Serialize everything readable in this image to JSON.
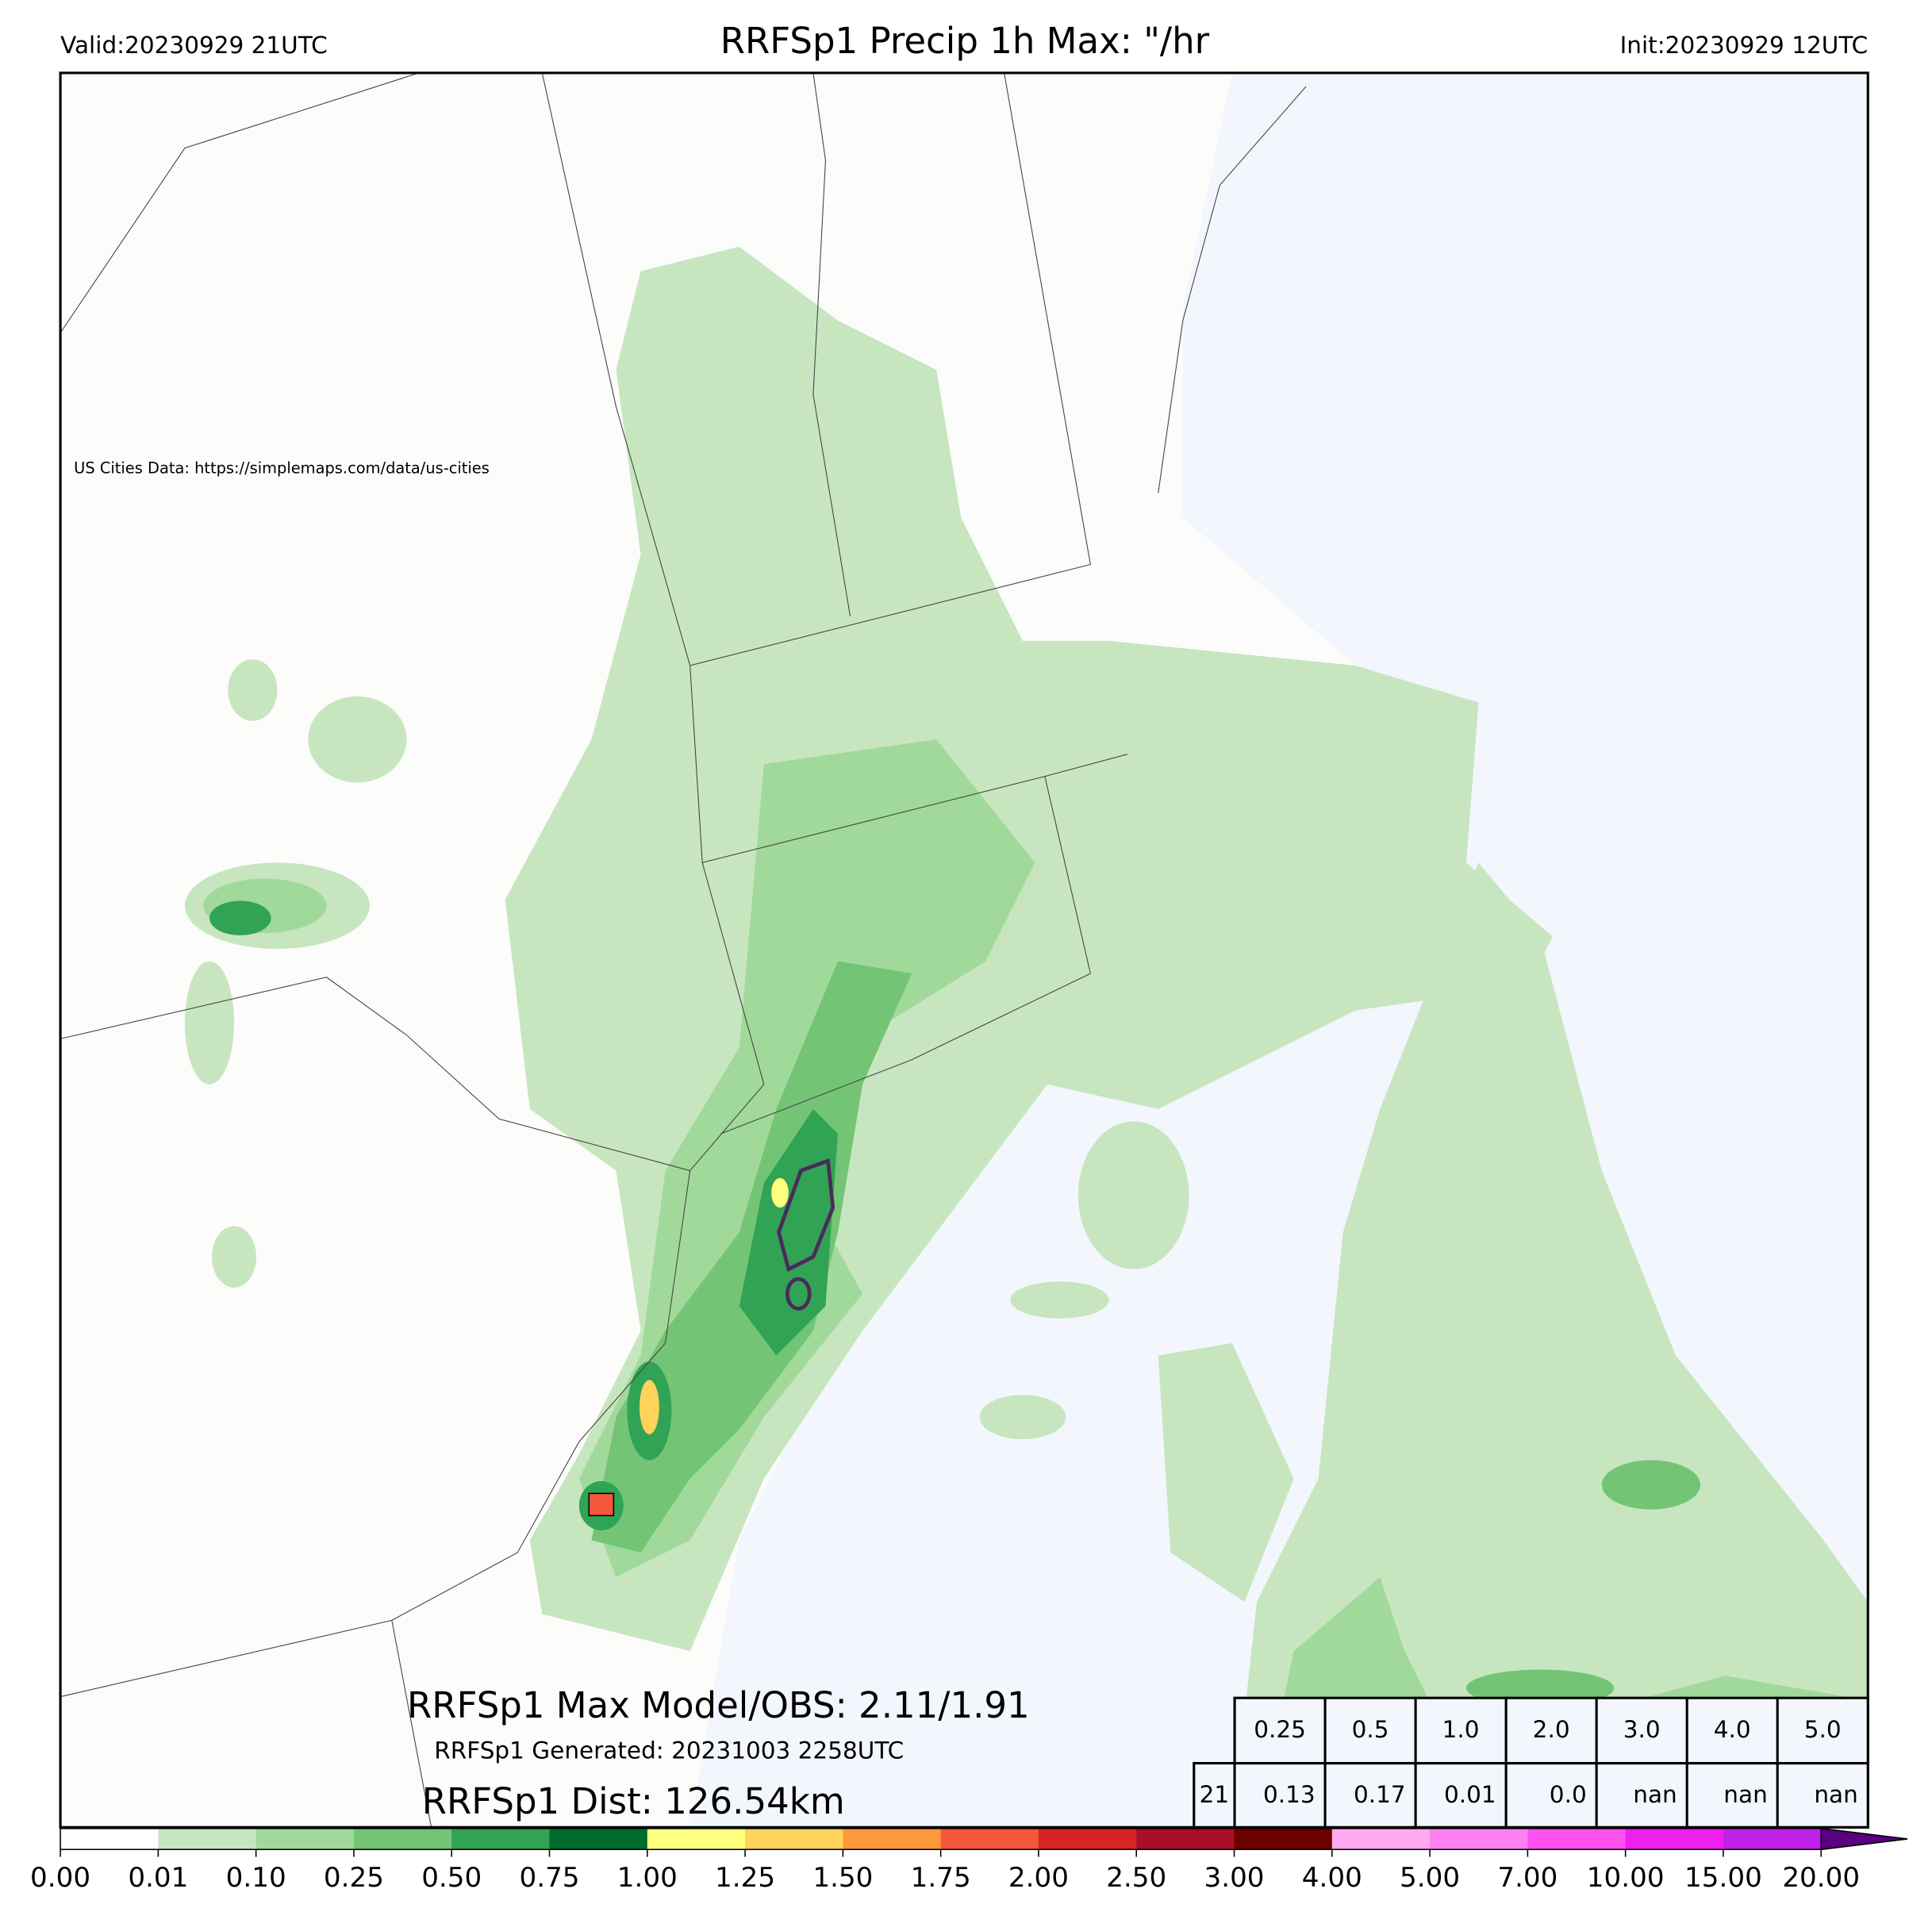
{
  "header": {
    "valid": "Valid:20230929 21UTC",
    "title": "RRFSp1 Precip 1h Max: \"/hr",
    "init": "Init:20230929 12UTC"
  },
  "map": {
    "attribution": "US Cities Data: https://simplemaps.com/data/us-cities",
    "max_model_obs": "RRFSp1 Max Model/OBS: 2.11/1.91",
    "generated": "RRFSp1 Generated: 20231003 2258UTC",
    "dist": "RRFSp1 Dist: 126.54km"
  },
  "table": {
    "header": [
      "0.25",
      "0.5",
      "1.0",
      "2.0",
      "3.0",
      "4.0",
      "5.0"
    ],
    "row": [
      "21",
      "0.13",
      "0.17",
      "0.01",
      "0.0",
      "nan",
      "nan",
      "nan"
    ]
  },
  "colorbar": {
    "labels": [
      "0.00",
      "0.01",
      "0.10",
      "0.25",
      "0.50",
      "0.75",
      "1.00",
      "1.25",
      "1.50",
      "1.75",
      "2.00",
      "2.50",
      "3.00",
      "4.00",
      "5.00",
      "7.00",
      "10.00",
      "15.00",
      "20.00"
    ],
    "colors": [
      "#ffffff",
      "#c7e6c0",
      "#a1d99b",
      "#74c476",
      "#31a354",
      "#006d2c",
      "#ffff80",
      "#ffd35a",
      "#ff9a3c",
      "#f5573a",
      "#d62424",
      "#a90e2a",
      "#6b0000",
      "#ffaaf0",
      "#ff80f0",
      "#ff50f0",
      "#ee20ee",
      "#c020e8",
      "#9000d0",
      "#5a0080"
    ]
  }
}
